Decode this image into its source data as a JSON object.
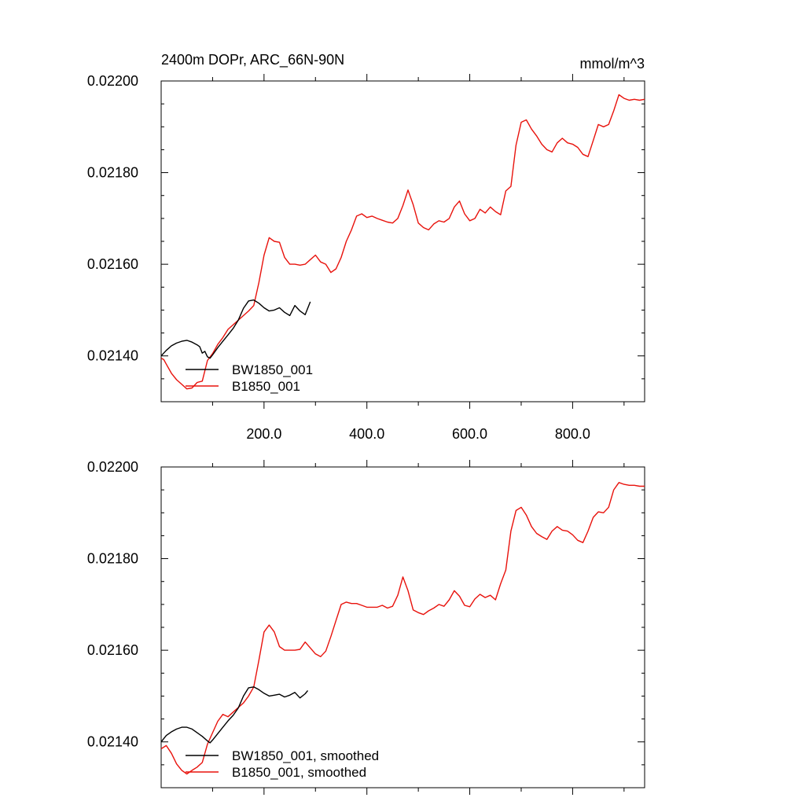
{
  "chart_data": [
    {
      "type": "line",
      "title": "2400m DOPr, ARC_66N-90N",
      "units": "mmol/m^3",
      "xlim": [
        0,
        940
      ],
      "ylim": [
        0.0213,
        0.022
      ],
      "x_ticks": [
        200,
        400,
        600,
        800
      ],
      "x_tick_labels": [
        "200.0",
        "400.0",
        "600.0",
        "800.0"
      ],
      "y_ticks": [
        0.0214,
        0.0216,
        0.0218,
        0.022
      ],
      "y_tick_labels": [
        "0.02140",
        "0.02160",
        "0.02180",
        "0.02200"
      ],
      "legend_position": "bottom-left",
      "series": [
        {
          "name": "BW1850_001",
          "color": "#000000",
          "x": [
            0,
            10,
            20,
            30,
            40,
            50,
            60,
            70,
            75,
            80,
            85,
            90,
            95,
            100,
            110,
            120,
            130,
            140,
            150,
            160,
            170,
            180,
            190,
            200,
            210,
            220,
            230,
            240,
            250,
            260,
            270,
            280,
            290
          ],
          "y": [
            0.0214,
            0.021412,
            0.021422,
            0.021428,
            0.021432,
            0.021434,
            0.02143,
            0.021424,
            0.02142,
            0.021406,
            0.02141,
            0.021398,
            0.021395,
            0.021402,
            0.021418,
            0.021432,
            0.021446,
            0.02146,
            0.021478,
            0.021504,
            0.02152,
            0.021522,
            0.021515,
            0.021505,
            0.021498,
            0.0215,
            0.021505,
            0.021495,
            0.021488,
            0.02151,
            0.021498,
            0.02149,
            0.021518
          ]
        },
        {
          "name": "B1850_001",
          "color": "#e8120c",
          "x": [
            0,
            5,
            10,
            20,
            30,
            40,
            50,
            60,
            70,
            80,
            90,
            100,
            110,
            120,
            130,
            140,
            150,
            160,
            170,
            180,
            190,
            200,
            210,
            220,
            230,
            240,
            250,
            260,
            270,
            280,
            290,
            300,
            310,
            320,
            330,
            340,
            350,
            360,
            370,
            380,
            390,
            400,
            410,
            420,
            430,
            440,
            450,
            460,
            470,
            480,
            490,
            500,
            510,
            520,
            530,
            540,
            550,
            560,
            570,
            580,
            590,
            600,
            610,
            620,
            630,
            640,
            650,
            660,
            670,
            680,
            690,
            700,
            710,
            720,
            730,
            740,
            750,
            760,
            770,
            780,
            790,
            800,
            810,
            820,
            830,
            840,
            850,
            860,
            870,
            880,
            890,
            900,
            910,
            920,
            930,
            940
          ],
          "y": [
            0.021395,
            0.021392,
            0.021382,
            0.021362,
            0.021348,
            0.021338,
            0.021328,
            0.02133,
            0.021342,
            0.021345,
            0.02139,
            0.021405,
            0.021425,
            0.02144,
            0.021458,
            0.021468,
            0.021478,
            0.021488,
            0.021498,
            0.02151,
            0.02156,
            0.02162,
            0.021658,
            0.02165,
            0.021648,
            0.021615,
            0.0216,
            0.0216,
            0.021598,
            0.0216,
            0.02161,
            0.02162,
            0.021605,
            0.0216,
            0.021582,
            0.02159,
            0.021615,
            0.02165,
            0.021675,
            0.021705,
            0.02171,
            0.021702,
            0.021705,
            0.0217,
            0.021696,
            0.021692,
            0.02169,
            0.0217,
            0.021728,
            0.021762,
            0.02173,
            0.02169,
            0.02168,
            0.021675,
            0.021688,
            0.021695,
            0.021692,
            0.0217,
            0.021725,
            0.021738,
            0.02171,
            0.021695,
            0.0217,
            0.02172,
            0.021712,
            0.021725,
            0.021715,
            0.021708,
            0.02176,
            0.02177,
            0.02186,
            0.02191,
            0.021915,
            0.021895,
            0.02188,
            0.021862,
            0.02185,
            0.021845,
            0.021865,
            0.021875,
            0.021865,
            0.021862,
            0.021855,
            0.02184,
            0.021835,
            0.02187,
            0.021905,
            0.0219,
            0.021905,
            0.021935,
            0.02197,
            0.021962,
            0.021958,
            0.02196,
            0.021958,
            0.02196
          ]
        }
      ]
    },
    {
      "type": "line",
      "xlim": [
        0,
        940
      ],
      "ylim": [
        0.0213,
        0.022
      ],
      "x_ticks": [
        200,
        400,
        600,
        800
      ],
      "y_ticks": [
        0.0214,
        0.0216,
        0.0218,
        0.022
      ],
      "y_tick_labels": [
        "0.02140",
        "0.02160",
        "0.02180",
        "0.02200"
      ],
      "legend_position": "bottom-left",
      "series": [
        {
          "name": "BW1850_001, smoothed",
          "color": "#000000",
          "x": [
            0,
            10,
            20,
            30,
            40,
            50,
            60,
            70,
            80,
            90,
            95,
            100,
            110,
            120,
            130,
            140,
            150,
            160,
            170,
            180,
            190,
            200,
            210,
            220,
            230,
            240,
            250,
            260,
            270,
            280,
            285
          ],
          "y": [
            0.0214,
            0.021414,
            0.021422,
            0.021428,
            0.021432,
            0.021432,
            0.021428,
            0.02142,
            0.021412,
            0.021402,
            0.021398,
            0.021404,
            0.021418,
            0.021432,
            0.021446,
            0.021458,
            0.021474,
            0.0215,
            0.021518,
            0.02152,
            0.021514,
            0.021506,
            0.0215,
            0.021502,
            0.021504,
            0.021498,
            0.021502,
            0.021508,
            0.021496,
            0.021505,
            0.021512
          ]
        },
        {
          "name": "B1850_001, smoothed",
          "color": "#e8120c",
          "x": [
            0,
            10,
            20,
            30,
            40,
            50,
            60,
            70,
            80,
            90,
            100,
            110,
            120,
            130,
            140,
            150,
            160,
            170,
            180,
            190,
            200,
            210,
            220,
            230,
            240,
            250,
            260,
            270,
            280,
            290,
            300,
            310,
            320,
            330,
            340,
            350,
            360,
            370,
            380,
            390,
            400,
            410,
            420,
            430,
            440,
            450,
            460,
            470,
            480,
            490,
            500,
            510,
            520,
            530,
            540,
            550,
            560,
            570,
            580,
            590,
            600,
            610,
            620,
            630,
            640,
            650,
            660,
            670,
            680,
            690,
            700,
            710,
            720,
            730,
            740,
            750,
            760,
            770,
            780,
            790,
            800,
            810,
            820,
            830,
            840,
            850,
            860,
            870,
            880,
            890,
            900,
            910,
            920,
            930,
            940
          ],
          "y": [
            0.021385,
            0.021392,
            0.021375,
            0.021352,
            0.021338,
            0.02133,
            0.021338,
            0.021345,
            0.021355,
            0.021395,
            0.02142,
            0.021445,
            0.02146,
            0.021455,
            0.021465,
            0.021475,
            0.021485,
            0.0215,
            0.02152,
            0.021578,
            0.02164,
            0.021655,
            0.02164,
            0.021608,
            0.0216,
            0.0216,
            0.0216,
            0.021602,
            0.021618,
            0.021605,
            0.021592,
            0.021586,
            0.021598,
            0.02163,
            0.021665,
            0.0217,
            0.021705,
            0.021702,
            0.021702,
            0.021698,
            0.021694,
            0.021694,
            0.021694,
            0.021698,
            0.021692,
            0.021696,
            0.02172,
            0.02176,
            0.02173,
            0.021688,
            0.021682,
            0.021678,
            0.021686,
            0.021692,
            0.0217,
            0.021696,
            0.02171,
            0.02173,
            0.021718,
            0.021698,
            0.021695,
            0.021712,
            0.021722,
            0.021715,
            0.02172,
            0.02171,
            0.021745,
            0.021775,
            0.02186,
            0.021905,
            0.021912,
            0.021895,
            0.02187,
            0.021855,
            0.021848,
            0.021842,
            0.02186,
            0.02187,
            0.021862,
            0.02186,
            0.021852,
            0.02184,
            0.021835,
            0.02186,
            0.02189,
            0.021902,
            0.0219,
            0.021912,
            0.02195,
            0.021966,
            0.021962,
            0.02196,
            0.02196,
            0.021958,
            0.021958
          ]
        }
      ]
    }
  ]
}
